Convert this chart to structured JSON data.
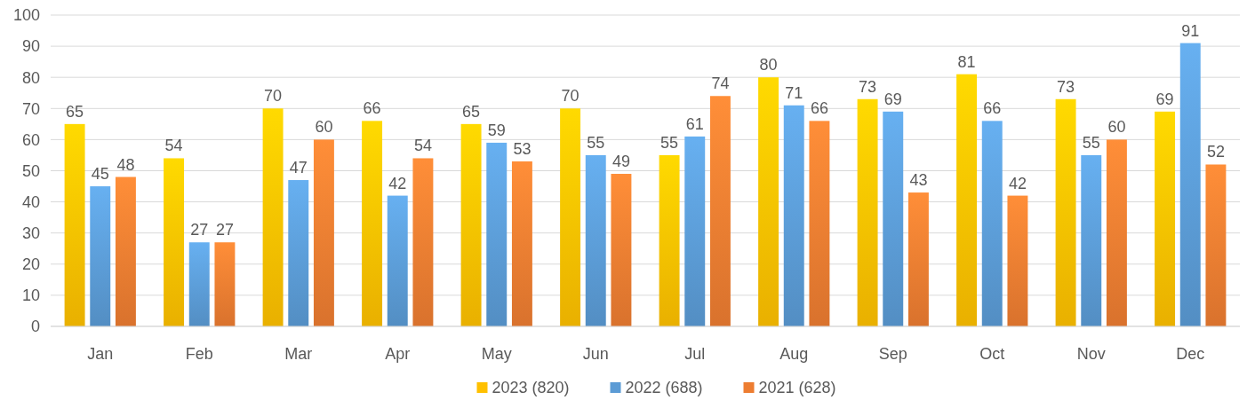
{
  "chart_data": {
    "type": "bar",
    "categories": [
      "Jan",
      "Feb",
      "Mar",
      "Apr",
      "May",
      "Jun",
      "Jul",
      "Aug",
      "Sep",
      "Oct",
      "Nov",
      "Dec"
    ],
    "series": [
      {
        "name": "2023 (820)",
        "color": "#ffc000",
        "values": [
          65,
          54,
          70,
          66,
          65,
          70,
          55,
          80,
          73,
          81,
          73,
          69
        ]
      },
      {
        "name": "2022 (688)",
        "color": "#5b9bd5",
        "values": [
          45,
          27,
          47,
          42,
          59,
          55,
          61,
          71,
          69,
          66,
          55,
          91
        ]
      },
      {
        "name": "2021 (628)",
        "color": "#ed7d31",
        "values": [
          48,
          27,
          60,
          54,
          53,
          49,
          74,
          66,
          43,
          42,
          60,
          52
        ]
      }
    ],
    "ylim": [
      0,
      100
    ],
    "yticks": [
      0,
      10,
      20,
      30,
      40,
      50,
      60,
      70,
      80,
      90,
      100
    ],
    "grid": "y",
    "legend": "bottom",
    "data_labels": true
  }
}
